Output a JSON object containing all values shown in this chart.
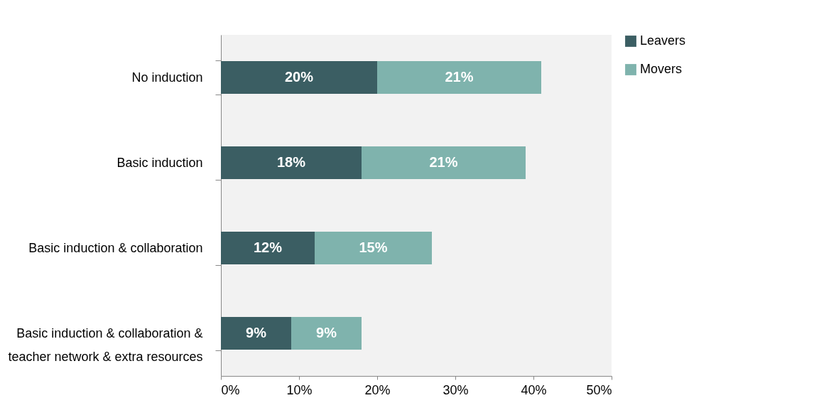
{
  "chart_data": {
    "type": "bar",
    "orientation": "horizontal",
    "stacked": true,
    "categories": [
      "No induction",
      "Basic induction",
      "Basic induction & collaboration",
      "Basic induction & collaboration &\nteacher network & extra resources"
    ],
    "series": [
      {
        "name": "Leavers",
        "color": "#3b5e63",
        "values": [
          20,
          18,
          12,
          9
        ],
        "value_labels": [
          "20%",
          "18%",
          "12%",
          "9%"
        ]
      },
      {
        "name": "Movers",
        "color": "#7fb3ad",
        "values": [
          21,
          21,
          15,
          9
        ],
        "value_labels": [
          "21%",
          "21%",
          "15%",
          "9%"
        ]
      }
    ],
    "xlim": [
      0,
      50
    ],
    "xticks": [
      {
        "value": 0,
        "label": "0%"
      },
      {
        "value": 10,
        "label": "10%"
      },
      {
        "value": 20,
        "label": "20%"
      },
      {
        "value": 30,
        "label": "30%"
      },
      {
        "value": 40,
        "label": "40%"
      },
      {
        "value": 50,
        "label": "50%"
      }
    ],
    "grid": false,
    "legend": "right"
  }
}
